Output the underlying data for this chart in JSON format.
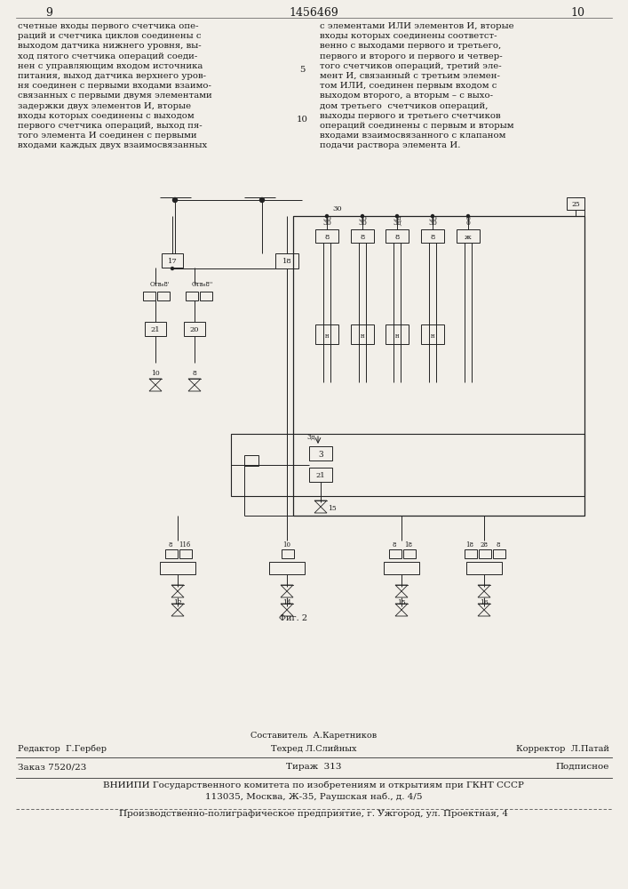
{
  "page_width": 7.07,
  "page_height": 10.0,
  "bg_color": "#f2efe9",
  "page_num_left": "9",
  "page_num_center": "1456469",
  "page_num_right": "10",
  "text_col1": "счетные входы первого счетчика опе-\nраций и счетчика циклов соединены с\nвыходом датчика нижнего уровня, вы-\nход пятого счетчика операций соеди-\nнен с управляющим входом источника\nпитания, выход датчика верхнего уров-\nня соединен с первыми входами взаимо-\nсвязанных с первыми двумя элементами\nзадержки двух элементов И, вторые\nвходы которых соединены с выходом\nпервого счетчика операций, выход пя-\nтого элемента И соединен с первыми\nвходами каждых двух взаимосвязанных",
  "text_linenum_5": "5",
  "text_linenum_10": "10",
  "text_col2": "с элементами ИЛИ элементов И, вторые\nвходы которых соединены соответст-\nвенно с выходами первого и третьего,\nпервого и второго и первого и четвер-\nтого счетчиков операций, третий эле-\nмент И, связанный с третьим элемен-\nтом ИЛИ, соединен первым входом с\nвыходом второго, а вторым – с выхо-\nдом третьего  счетчиков операций,\nвыходы первого и третьего счетчиков\nопераций соединены с первым и вторым\nвходами взаимосвязанного с клапаном\nподачи раствора элемента И.",
  "footer_editor": "Редактор  Г.Гербер",
  "footer_composer": "Составитель  А.Каретников",
  "footer_techred": "Техред Л.Слийных",
  "footer_corrector": "Корректор  Л.Патай",
  "footer_order": "Заказ 7520/23",
  "footer_tirage": "Тираж  313",
  "footer_podpisnoe": "Подписное",
  "footer_vniipи": "ВНИИПИ Государственного комитета по изобретениям и открытиям при ГКНТ СССР",
  "footer_address": "113035, Москва, Ж-35, Раушская наб., д. 4/5",
  "footer_factory": "Производственно-полиграфическое предприятие, г. Ужгород, ул. Проектная, 4",
  "diagram_caption": "Фиг. 2"
}
